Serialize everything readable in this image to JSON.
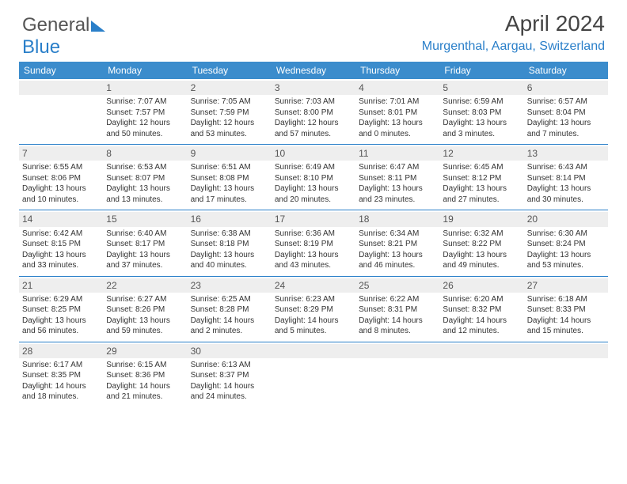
{
  "logo": {
    "part1": "General",
    "part2": "Blue"
  },
  "header": {
    "title": "April 2024",
    "location": "Murgenthal, Aargau, Switzerland"
  },
  "colors": {
    "header_bg": "#3b8ccc",
    "accent": "#2a7fc9",
    "daynum_bg": "#eeeeee",
    "text": "#333333"
  },
  "daynames": [
    "Sunday",
    "Monday",
    "Tuesday",
    "Wednesday",
    "Thursday",
    "Friday",
    "Saturday"
  ],
  "weeks": [
    [
      {
        "n": "",
        "sr": "",
        "ss": "",
        "dl1": "",
        "dl2": ""
      },
      {
        "n": "1",
        "sr": "Sunrise: 7:07 AM",
        "ss": "Sunset: 7:57 PM",
        "dl1": "Daylight: 12 hours",
        "dl2": "and 50 minutes."
      },
      {
        "n": "2",
        "sr": "Sunrise: 7:05 AM",
        "ss": "Sunset: 7:59 PM",
        "dl1": "Daylight: 12 hours",
        "dl2": "and 53 minutes."
      },
      {
        "n": "3",
        "sr": "Sunrise: 7:03 AM",
        "ss": "Sunset: 8:00 PM",
        "dl1": "Daylight: 12 hours",
        "dl2": "and 57 minutes."
      },
      {
        "n": "4",
        "sr": "Sunrise: 7:01 AM",
        "ss": "Sunset: 8:01 PM",
        "dl1": "Daylight: 13 hours",
        "dl2": "and 0 minutes."
      },
      {
        "n": "5",
        "sr": "Sunrise: 6:59 AM",
        "ss": "Sunset: 8:03 PM",
        "dl1": "Daylight: 13 hours",
        "dl2": "and 3 minutes."
      },
      {
        "n": "6",
        "sr": "Sunrise: 6:57 AM",
        "ss": "Sunset: 8:04 PM",
        "dl1": "Daylight: 13 hours",
        "dl2": "and 7 minutes."
      }
    ],
    [
      {
        "n": "7",
        "sr": "Sunrise: 6:55 AM",
        "ss": "Sunset: 8:06 PM",
        "dl1": "Daylight: 13 hours",
        "dl2": "and 10 minutes."
      },
      {
        "n": "8",
        "sr": "Sunrise: 6:53 AM",
        "ss": "Sunset: 8:07 PM",
        "dl1": "Daylight: 13 hours",
        "dl2": "and 13 minutes."
      },
      {
        "n": "9",
        "sr": "Sunrise: 6:51 AM",
        "ss": "Sunset: 8:08 PM",
        "dl1": "Daylight: 13 hours",
        "dl2": "and 17 minutes."
      },
      {
        "n": "10",
        "sr": "Sunrise: 6:49 AM",
        "ss": "Sunset: 8:10 PM",
        "dl1": "Daylight: 13 hours",
        "dl2": "and 20 minutes."
      },
      {
        "n": "11",
        "sr": "Sunrise: 6:47 AM",
        "ss": "Sunset: 8:11 PM",
        "dl1": "Daylight: 13 hours",
        "dl2": "and 23 minutes."
      },
      {
        "n": "12",
        "sr": "Sunrise: 6:45 AM",
        "ss": "Sunset: 8:12 PM",
        "dl1": "Daylight: 13 hours",
        "dl2": "and 27 minutes."
      },
      {
        "n": "13",
        "sr": "Sunrise: 6:43 AM",
        "ss": "Sunset: 8:14 PM",
        "dl1": "Daylight: 13 hours",
        "dl2": "and 30 minutes."
      }
    ],
    [
      {
        "n": "14",
        "sr": "Sunrise: 6:42 AM",
        "ss": "Sunset: 8:15 PM",
        "dl1": "Daylight: 13 hours",
        "dl2": "and 33 minutes."
      },
      {
        "n": "15",
        "sr": "Sunrise: 6:40 AM",
        "ss": "Sunset: 8:17 PM",
        "dl1": "Daylight: 13 hours",
        "dl2": "and 37 minutes."
      },
      {
        "n": "16",
        "sr": "Sunrise: 6:38 AM",
        "ss": "Sunset: 8:18 PM",
        "dl1": "Daylight: 13 hours",
        "dl2": "and 40 minutes."
      },
      {
        "n": "17",
        "sr": "Sunrise: 6:36 AM",
        "ss": "Sunset: 8:19 PM",
        "dl1": "Daylight: 13 hours",
        "dl2": "and 43 minutes."
      },
      {
        "n": "18",
        "sr": "Sunrise: 6:34 AM",
        "ss": "Sunset: 8:21 PM",
        "dl1": "Daylight: 13 hours",
        "dl2": "and 46 minutes."
      },
      {
        "n": "19",
        "sr": "Sunrise: 6:32 AM",
        "ss": "Sunset: 8:22 PM",
        "dl1": "Daylight: 13 hours",
        "dl2": "and 49 minutes."
      },
      {
        "n": "20",
        "sr": "Sunrise: 6:30 AM",
        "ss": "Sunset: 8:24 PM",
        "dl1": "Daylight: 13 hours",
        "dl2": "and 53 minutes."
      }
    ],
    [
      {
        "n": "21",
        "sr": "Sunrise: 6:29 AM",
        "ss": "Sunset: 8:25 PM",
        "dl1": "Daylight: 13 hours",
        "dl2": "and 56 minutes."
      },
      {
        "n": "22",
        "sr": "Sunrise: 6:27 AM",
        "ss": "Sunset: 8:26 PM",
        "dl1": "Daylight: 13 hours",
        "dl2": "and 59 minutes."
      },
      {
        "n": "23",
        "sr": "Sunrise: 6:25 AM",
        "ss": "Sunset: 8:28 PM",
        "dl1": "Daylight: 14 hours",
        "dl2": "and 2 minutes."
      },
      {
        "n": "24",
        "sr": "Sunrise: 6:23 AM",
        "ss": "Sunset: 8:29 PM",
        "dl1": "Daylight: 14 hours",
        "dl2": "and 5 minutes."
      },
      {
        "n": "25",
        "sr": "Sunrise: 6:22 AM",
        "ss": "Sunset: 8:31 PM",
        "dl1": "Daylight: 14 hours",
        "dl2": "and 8 minutes."
      },
      {
        "n": "26",
        "sr": "Sunrise: 6:20 AM",
        "ss": "Sunset: 8:32 PM",
        "dl1": "Daylight: 14 hours",
        "dl2": "and 12 minutes."
      },
      {
        "n": "27",
        "sr": "Sunrise: 6:18 AM",
        "ss": "Sunset: 8:33 PM",
        "dl1": "Daylight: 14 hours",
        "dl2": "and 15 minutes."
      }
    ],
    [
      {
        "n": "28",
        "sr": "Sunrise: 6:17 AM",
        "ss": "Sunset: 8:35 PM",
        "dl1": "Daylight: 14 hours",
        "dl2": "and 18 minutes."
      },
      {
        "n": "29",
        "sr": "Sunrise: 6:15 AM",
        "ss": "Sunset: 8:36 PM",
        "dl1": "Daylight: 14 hours",
        "dl2": "and 21 minutes."
      },
      {
        "n": "30",
        "sr": "Sunrise: 6:13 AM",
        "ss": "Sunset: 8:37 PM",
        "dl1": "Daylight: 14 hours",
        "dl2": "and 24 minutes."
      },
      {
        "n": "",
        "sr": "",
        "ss": "",
        "dl1": "",
        "dl2": ""
      },
      {
        "n": "",
        "sr": "",
        "ss": "",
        "dl1": "",
        "dl2": ""
      },
      {
        "n": "",
        "sr": "",
        "ss": "",
        "dl1": "",
        "dl2": ""
      },
      {
        "n": "",
        "sr": "",
        "ss": "",
        "dl1": "",
        "dl2": ""
      }
    ]
  ]
}
